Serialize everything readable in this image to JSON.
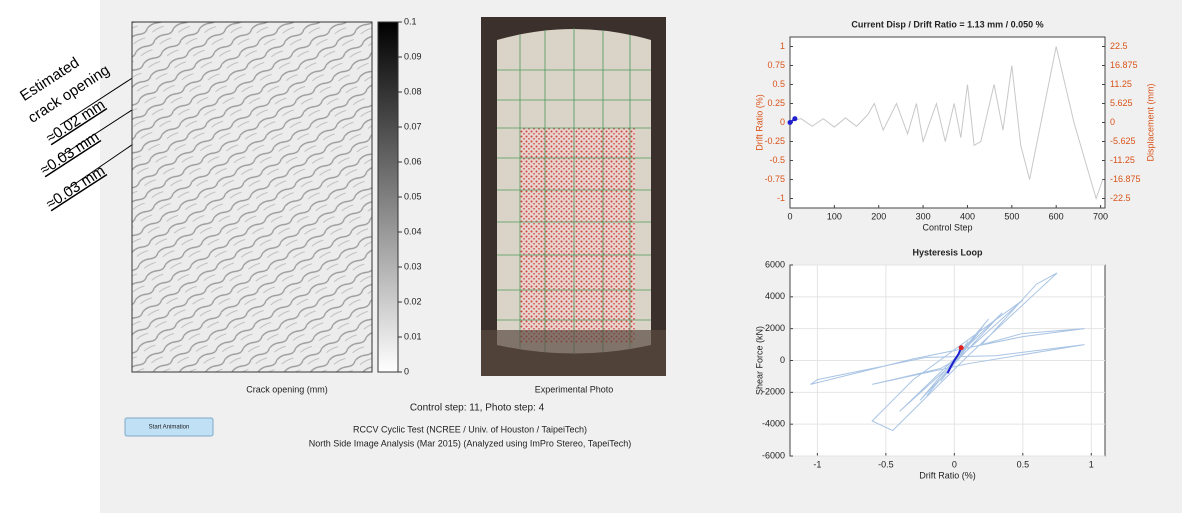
{
  "annotations": {
    "title_lines": [
      "Estimated",
      "crack opening"
    ],
    "values": [
      "≈0.02 mm",
      "≈0.03 mm",
      "≈0.03 mm"
    ]
  },
  "crack_panel": {
    "label": "Crack opening (mm)",
    "colorbar_lim": [
      0,
      0.1
    ],
    "colorbar_ticks": [
      0,
      0.01,
      0.02,
      0.03,
      0.04,
      0.05,
      0.06,
      0.07,
      0.08,
      0.09,
      0.1
    ]
  },
  "photo_panel": {
    "label": "Experimental Photo"
  },
  "status": "Control step:  11,  Photo step:  4",
  "button": "Start Animation",
  "info_lines": [
    "RCCV Cyclic Test (NCREE / Univ. of Houston / TaipeiTech)",
    "North Side Image Analysis (Mar 2015) (Analyzed using ImPro Stereo, TapeiTech)"
  ],
  "chart_data": [
    {
      "type": "line",
      "title": "Current Disp / Drift Ratio =     1.13 mm /  0.050 %",
      "xlabel": "Control Step",
      "ylabel": "Drift Ratio (%)",
      "y2label": "Displacement (mm)",
      "ylabel_color": "#d95319",
      "xlim": [
        0,
        710
      ],
      "xticks": [
        0,
        100,
        200,
        300,
        400,
        500,
        600,
        700
      ],
      "ylim": [
        -1.125,
        1.125
      ],
      "yticks": [
        -1,
        -0.75,
        -0.5,
        -0.25,
        0,
        0.25,
        0.5,
        0.75,
        1
      ],
      "y2lim": [
        -25.3125,
        25.3125
      ],
      "y2ticks": [
        -22.5,
        -16.875,
        -11.25,
        -5.625,
        0,
        5.625,
        11.25,
        16.875,
        22.5
      ],
      "grid": false,
      "series": [
        {
          "color": "#c8c8c8",
          "x": [
            0,
            10,
            25,
            50,
            75,
            100,
            125,
            150,
            175,
            190,
            210,
            240,
            265,
            285,
            300,
            330,
            350,
            370,
            385,
            400,
            415,
            430,
            460,
            480,
            500,
            520,
            540,
            600,
            640,
            690,
            705
          ],
          "values": [
            0,
            0.03,
            0.05,
            -0.05,
            0.05,
            -0.06,
            0.06,
            -0.05,
            0.1,
            0.25,
            -0.1,
            0.25,
            -0.15,
            0.25,
            -0.25,
            0.25,
            -0.25,
            0.25,
            -0.2,
            0.5,
            -0.3,
            -0.25,
            0.5,
            -0.1,
            0.75,
            -0.3,
            -0.75,
            1.0,
            0,
            -1.0,
            -0.75
          ]
        },
        {
          "color": "#1f1fd0",
          "x": [
            0,
            11
          ],
          "values": [
            0,
            0.05
          ],
          "marker": "dot"
        }
      ]
    },
    {
      "type": "line",
      "title": "Hysteresis Loop",
      "xlabel": "Drift Ratio (%)",
      "ylabel": "Shear Force (kN)",
      "xlim": [
        -1.2,
        1.1
      ],
      "xticks": [
        -1,
        -0.5,
        0,
        0.5,
        1
      ],
      "ylim": [
        -6000,
        6000
      ],
      "yticks": [
        -6000,
        -4000,
        -2000,
        0,
        2000,
        4000,
        6000
      ],
      "grid": true,
      "series": [
        {
          "color": "#a9c4e4",
          "x": [
            0,
            0.05,
            -0.05,
            0.1,
            -0.1,
            0.2,
            -0.2,
            0.25,
            -0.25,
            0.35,
            -0.4,
            0.5,
            -0.3,
            -0.6,
            -0.45,
            0.1,
            0.6,
            0.75,
            0.6,
            0.2,
            0.5,
            0.95,
            0.5,
            -0.3,
            -1.05,
            -1.0,
            -0.2,
            0.3,
            0.95,
            0.1,
            -0.6,
            -0.1,
            0
          ],
          "values": [
            0,
            600,
            -700,
            1200,
            -1300,
            2000,
            -2200,
            2600,
            -2500,
            3000,
            -3200,
            3800,
            -1200,
            -3800,
            -4400,
            300,
            4300,
            5500,
            4800,
            1000,
            1700,
            2000,
            1500,
            100,
            -1500,
            -1200,
            200,
            300,
            1000,
            -200,
            -1500,
            -500,
            0
          ]
        },
        {
          "color": "#1f1fd0",
          "x": [
            -0.05,
            -0.02,
            0,
            0.03,
            0.05
          ],
          "values": [
            -800,
            -300,
            0,
            400,
            800
          ]
        },
        {
          "color": "#e02020",
          "x": [
            0.05
          ],
          "values": [
            800
          ],
          "marker": "dot"
        }
      ]
    }
  ]
}
